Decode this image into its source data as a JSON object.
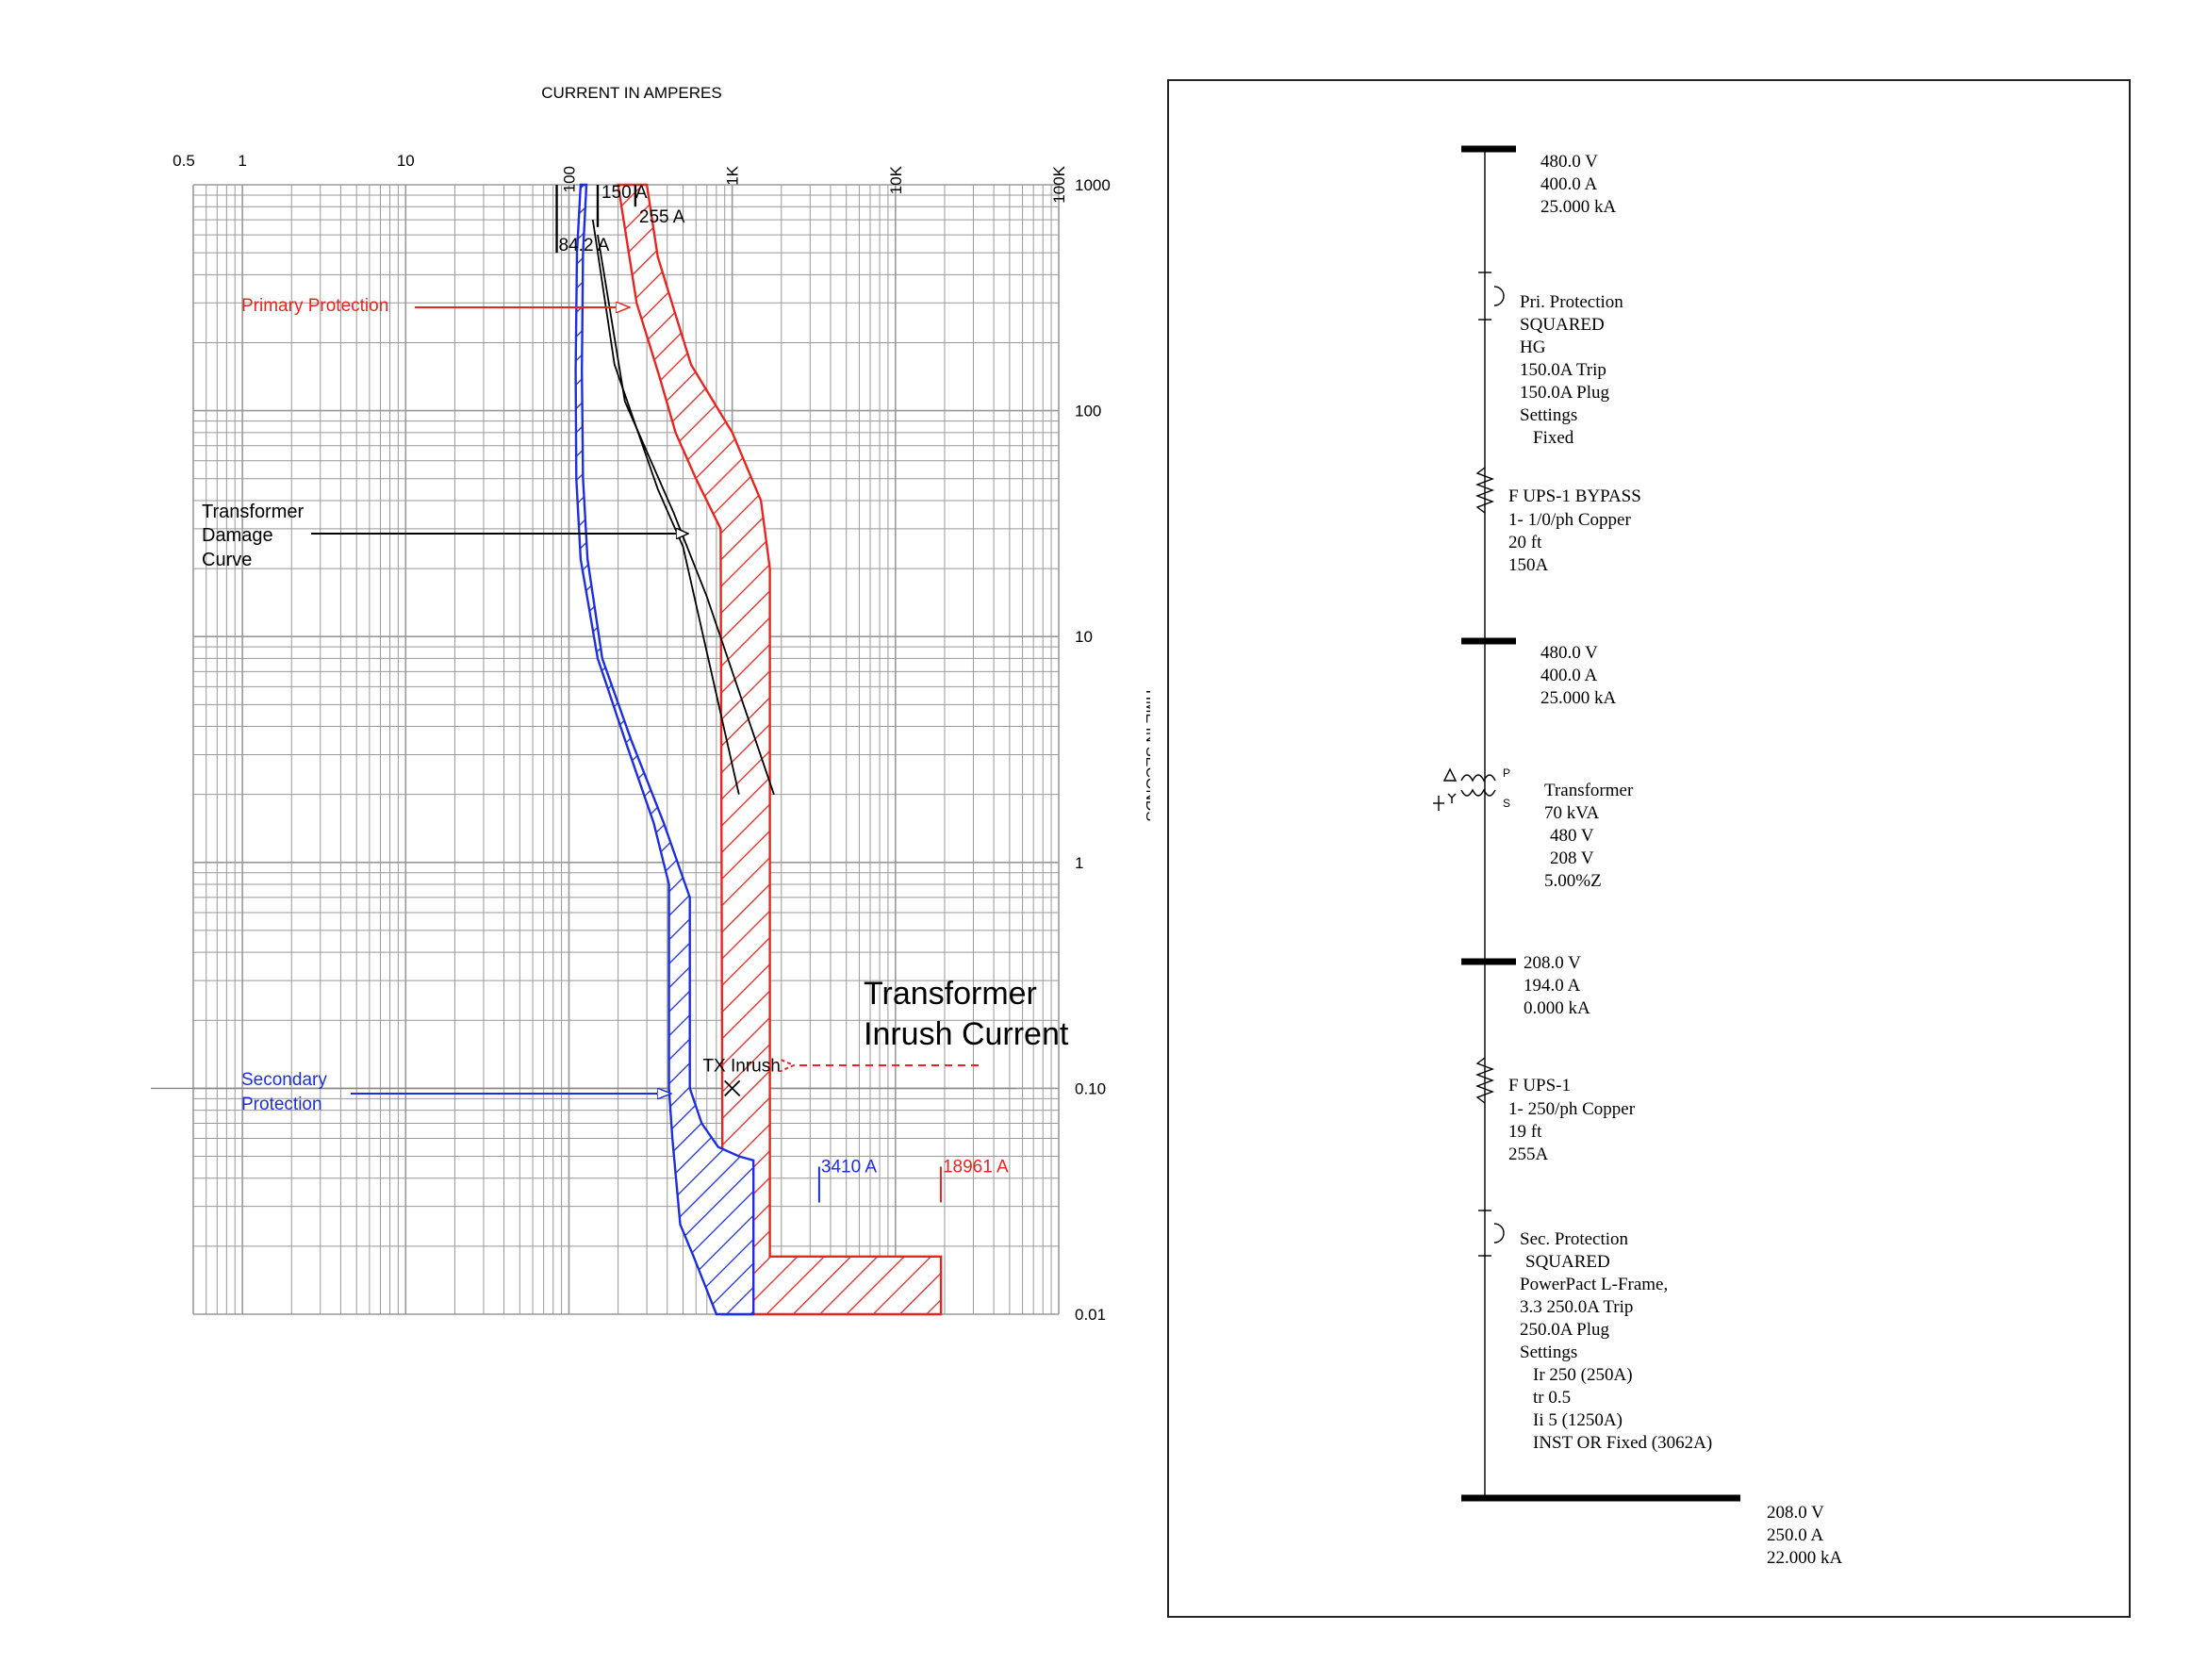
{
  "chart_data": {
    "type": "line",
    "xlabel": "CURRENT IN AMPERES",
    "ylabel": "TIME IN SECONDS",
    "x_scale": "log",
    "y_scale": "log",
    "xlim": [
      0.5,
      100000
    ],
    "ylim": [
      0.01,
      1000
    ],
    "grid": true,
    "x_ticks": [
      {
        "value": 0.5,
        "label": "0.5"
      },
      {
        "value": 1,
        "label": "1"
      },
      {
        "value": 10,
        "label": "10"
      },
      {
        "value": 100,
        "label": "100"
      },
      {
        "value": 1000,
        "label": "1K"
      },
      {
        "value": 10000,
        "label": "10K"
      },
      {
        "value": 100000,
        "label": "100K"
      }
    ],
    "y_ticks": [
      {
        "value": 1000,
        "label": "1000"
      },
      {
        "value": 100,
        "label": "100"
      },
      {
        "value": 10,
        "label": "10"
      },
      {
        "value": 1,
        "label": "1"
      },
      {
        "value": 0.1,
        "label": "0.10"
      },
      {
        "value": 0.01,
        "label": "0.01"
      }
    ],
    "colors": {
      "primary": "#e8251f",
      "secondary": "#1c2ee0",
      "damage": "#000000",
      "grid": "#999999"
    },
    "primary_band": {
      "left": [
        [
          200,
          1000
        ],
        [
          260,
          300
        ],
        [
          360,
          140
        ],
        [
          450,
          80
        ],
        [
          600,
          50
        ],
        [
          850,
          30
        ],
        [
          870,
          0.06
        ],
        [
          870,
          0.01
        ]
      ],
      "right": [
        [
          300,
          1000
        ],
        [
          350,
          480
        ],
        [
          440,
          280
        ],
        [
          560,
          160
        ],
        [
          1000,
          80
        ],
        [
          1500,
          40
        ],
        [
          1700,
          20
        ],
        [
          1700,
          0.05
        ],
        [
          1700,
          0.018
        ],
        [
          19000,
          0.018
        ],
        [
          19000,
          0.01
        ],
        [
          870,
          0.01
        ]
      ]
    },
    "secondary_band": {
      "left": [
        [
          118,
          1000
        ],
        [
          112,
          500
        ],
        [
          110,
          150
        ],
        [
          111,
          50
        ],
        [
          118,
          22
        ],
        [
          150,
          8
        ],
        [
          220,
          3.5
        ],
        [
          330,
          1.5
        ],
        [
          410,
          0.8
        ],
        [
          410,
          0.1
        ],
        [
          430,
          0.06
        ],
        [
          480,
          0.025
        ],
        [
          580,
          0.018
        ],
        [
          800,
          0.01
        ]
      ],
      "right": [
        [
          128,
          1000
        ],
        [
          122,
          500
        ],
        [
          120,
          150
        ],
        [
          122,
          50
        ],
        [
          130,
          22
        ],
        [
          160,
          8
        ],
        [
          240,
          3.5
        ],
        [
          380,
          1.5
        ],
        [
          550,
          0.7
        ],
        [
          550,
          0.1
        ],
        [
          650,
          0.07
        ],
        [
          820,
          0.055
        ],
        [
          1100,
          0.05
        ],
        [
          1350,
          0.048
        ],
        [
          1350,
          0.01
        ]
      ]
    },
    "damage_curves": [
      [
        [
          140,
          700
        ],
        [
          190,
          160
        ],
        [
          350,
          45
        ],
        [
          500,
          25
        ],
        [
          1100,
          2
        ]
      ],
      [
        [
          150,
          600
        ],
        [
          220,
          110
        ],
        [
          440,
          35
        ],
        [
          700,
          15
        ],
        [
          1800,
          2
        ]
      ]
    ],
    "inrush_point": {
      "x": 1000,
      "y": 0.1,
      "label": "TX Inrush"
    },
    "vertical_markers": [
      {
        "x": 84.2,
        "y_top": 1000,
        "y_bottom": 500,
        "label": "84.2 A"
      },
      {
        "x": 150,
        "y_top": 1000,
        "y_bottom": 650,
        "label": "150 A"
      },
      {
        "x": 255,
        "y_top": 1000,
        "y_bottom": 800,
        "label": "255 A"
      }
    ],
    "fault_markers": [
      {
        "x": 3410,
        "y": 0.045,
        "label": "3410 A",
        "color": "#1c2ee0"
      },
      {
        "x": 18961,
        "y": 0.045,
        "label": "18961 A",
        "color": "#e8251f"
      }
    ],
    "annotations": {
      "primary_protection": "Primary Protection",
      "transformer_damage": [
        "Transformer",
        "Damage",
        "Curve"
      ],
      "secondary_protection": [
        "Secondary",
        "Protection"
      ],
      "inrush": [
        "Transformer",
        "Inrush Current"
      ]
    }
  },
  "one_line": {
    "bus_top": [
      "480.0 V",
      "400.0 A",
      "25.000 kA"
    ],
    "pri_protection": [
      "Pri. Protection",
      "SQUARED",
      "HG",
      "150.0A Trip",
      "150.0A Plug",
      "Settings",
      "Fixed"
    ],
    "cable_bypass": [
      "F UPS-1 BYPASS",
      "1- 1/0/ph Copper",
      "20 ft",
      "150A"
    ],
    "bus_mid": [
      "480.0 V",
      "400.0 A",
      "25.000 kA"
    ],
    "transformer": [
      "Transformer",
      "70 kVA",
      "480 V",
      "208 V",
      "5.00%Z"
    ],
    "transformer_symbols": {
      "p": "P",
      "s": "S"
    },
    "bus_sec": [
      "208.0 V",
      "194.0 A",
      "0.000 kA"
    ],
    "cable_ups": [
      "F UPS-1",
      "1- 250/ph Copper",
      "19 ft",
      "255A"
    ],
    "sec_protection": [
      "Sec. Protection",
      "SQUARED",
      "PowerPact L-Frame,",
      "3.3 250.0A Trip",
      "250.0A Plug",
      "Settings",
      "Ir 250 (250A)",
      "tr 0.5",
      "Ii 5 (1250A)",
      "INST OR Fixed (3062A)"
    ],
    "bus_bottom": [
      "208.0 V",
      "250.0 A",
      "22.000 kA"
    ]
  }
}
